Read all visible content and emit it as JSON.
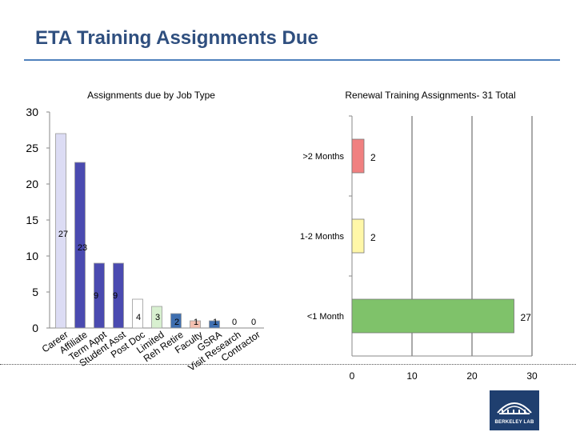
{
  "page": {
    "title": "ETA Training Assignments Due"
  },
  "logo": {
    "text": "BERKELEY LAB"
  },
  "chart_data": [
    {
      "type": "bar",
      "title": "Assignments due by Job Type",
      "categories": [
        "Career",
        "Affiliate",
        "Term Appt",
        "Student Asst",
        "Post Doc",
        "Limited",
        "Reh Retire",
        "Faculty",
        "GSRA",
        "Visit Research",
        "Contractor"
      ],
      "values": [
        27,
        23,
        9,
        9,
        4,
        3,
        2,
        1,
        1,
        0,
        0
      ],
      "colors": [
        "#dcdcf4",
        "#4a4ab0",
        "#4a4ab0",
        "#4a4ab0",
        "#ffffff",
        "#d8f0d0",
        "#3f6fb0",
        "#f4c0b0",
        "#3f6fb0",
        "#ffffff",
        "#ffffff"
      ],
      "ylim": [
        0,
        30
      ],
      "yticks": [
        0,
        5,
        10,
        15,
        20,
        25,
        30
      ],
      "grid": false
    },
    {
      "type": "bar",
      "orientation": "horizontal",
      "title": "Renewal Training Assignments- 31 Total",
      "categories": [
        ">2 Months",
        "1-2 Months",
        "<1 Month"
      ],
      "values": [
        2,
        2,
        27
      ],
      "colors": [
        "#f08080",
        "#fff7a8",
        "#7fc26a"
      ],
      "xlim": [
        0,
        30
      ],
      "xticks": [
        0,
        10,
        20,
        30
      ],
      "grid": true
    }
  ]
}
